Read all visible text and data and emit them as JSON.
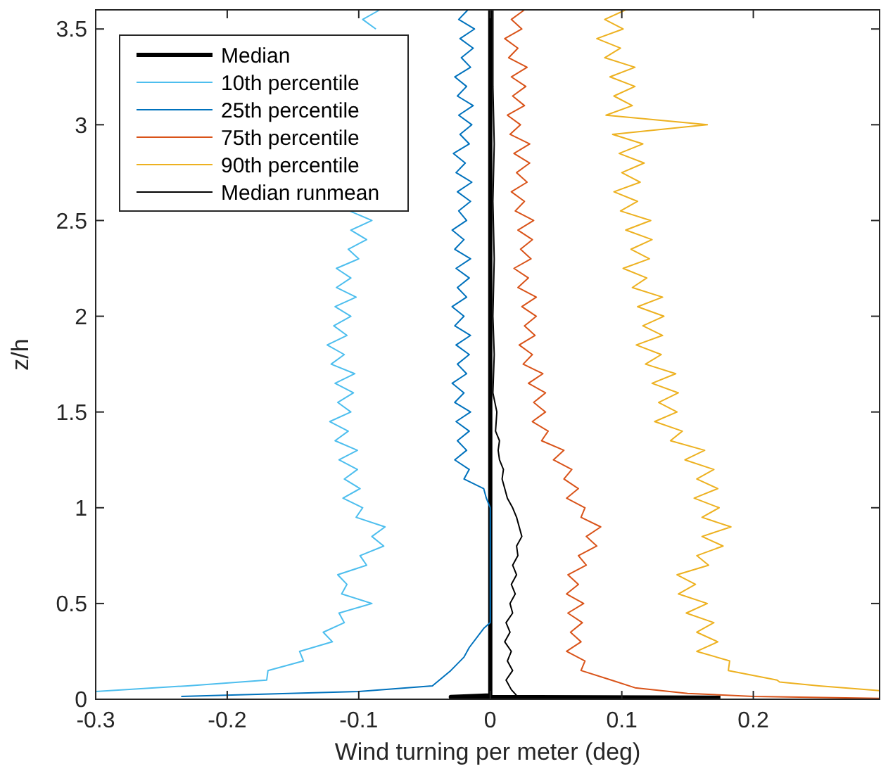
{
  "chart_data": {
    "type": "line",
    "xlabel": "Wind turning per meter (deg)",
    "ylabel": "z/h",
    "xlim": [
      -0.3,
      0.296
    ],
    "ylim": [
      0,
      3.6
    ],
    "xticks": [
      -0.3,
      -0.2,
      -0.1,
      0,
      0.1,
      0.2
    ],
    "yticks": [
      0,
      0.5,
      1,
      1.5,
      2,
      2.5,
      3,
      3.5
    ],
    "grid": false,
    "legend": "top left",
    "line_style": "solid",
    "marker": "none",
    "series": [
      {
        "name": "Median",
        "color": "#000000",
        "x": [
          0.175,
          -0.03,
          0,
          0
        ],
        "values": [
          0.008,
          0.012,
          0.02,
          3.6
        ]
      },
      {
        "name": "10th percentile",
        "color": "#4dbeee",
        "x": [
          -0.3,
          -0.23,
          -0.17,
          -0.169,
          -0.142,
          -0.145,
          -0.12,
          -0.127,
          -0.111,
          -0.115,
          -0.09,
          -0.113,
          -0.109,
          -0.116,
          -0.094,
          -0.099,
          -0.081,
          -0.09,
          -0.08,
          -0.102,
          -0.097,
          -0.112,
          -0.099,
          -0.111,
          -0.101,
          -0.115,
          -0.101,
          -0.118,
          -0.108,
          -0.122,
          -0.106,
          -0.116,
          -0.104,
          -0.118,
          -0.103,
          -0.121,
          -0.111,
          -0.124,
          -0.109,
          -0.119,
          -0.106,
          -0.118,
          -0.102,
          -0.117,
          -0.106,
          -0.117,
          -0.1,
          -0.108,
          -0.094,
          -0.106,
          -0.09,
          -0.107,
          null,
          null,
          null,
          null,
          null,
          null,
          null,
          null,
          null,
          null,
          null,
          null,
          null,
          null,
          null,
          null,
          null,
          null,
          -0.087,
          -0.097,
          -0.084
        ],
        "values": [
          0.04,
          0.07,
          0.1,
          0.15,
          0.2,
          0.25,
          0.3,
          0.35,
          0.4,
          0.45,
          0.5,
          0.55,
          0.6,
          0.65,
          0.7,
          0.75,
          0.8,
          0.85,
          0.9,
          0.95,
          1,
          1.05,
          1.1,
          1.15,
          1.2,
          1.25,
          1.3,
          1.35,
          1.4,
          1.45,
          1.5,
          1.55,
          1.6,
          1.65,
          1.7,
          1.75,
          1.8,
          1.85,
          1.9,
          1.95,
          2,
          2.05,
          2.1,
          2.15,
          2.2,
          2.25,
          2.3,
          2.35,
          2.4,
          2.45,
          2.5,
          2.55,
          null,
          null,
          null,
          null,
          null,
          null,
          null,
          null,
          null,
          null,
          null,
          null,
          null,
          null,
          null,
          null,
          null,
          null,
          3.5,
          3.55,
          3.6
        ]
      },
      {
        "name": "25th percentile",
        "color": "#0072bd",
        "x": [
          -0.235,
          -0.1,
          -0.044,
          -0.03,
          -0.02,
          -0.016,
          -0.005,
          0,
          0,
          -0.003,
          -0.005,
          -0.02,
          -0.016,
          -0.027,
          -0.018,
          -0.025,
          -0.016,
          -0.026,
          -0.015,
          -0.027,
          -0.02,
          -0.029,
          -0.018,
          -0.025,
          -0.016,
          -0.026,
          -0.015,
          -0.027,
          -0.02,
          -0.029,
          -0.018,
          -0.025,
          -0.016,
          -0.026,
          -0.015,
          -0.027,
          -0.02,
          -0.029,
          -0.018,
          -0.024,
          -0.015,
          -0.025,
          -0.014,
          -0.026,
          -0.019,
          -0.028,
          -0.016,
          -0.023,
          -0.014,
          -0.024,
          -0.013,
          -0.025,
          -0.018,
          -0.027,
          -0.015,
          -0.022,
          -0.013,
          -0.023,
          -0.012,
          -0.024,
          -0.017
        ],
        "values": [
          0.015,
          0.04,
          0.07,
          0.15,
          0.22,
          0.27,
          0.37,
          0.4,
          1,
          1.05,
          1.1,
          1.15,
          1.2,
          1.25,
          1.3,
          1.35,
          1.4,
          1.45,
          1.5,
          1.55,
          1.6,
          1.65,
          1.7,
          1.75,
          1.8,
          1.85,
          1.9,
          1.95,
          2,
          2.05,
          2.1,
          2.15,
          2.2,
          2.25,
          2.3,
          2.35,
          2.4,
          2.45,
          2.5,
          2.55,
          2.6,
          2.65,
          2.7,
          2.75,
          2.8,
          2.85,
          2.9,
          2.95,
          3,
          3.05,
          3.1,
          3.15,
          3.2,
          3.25,
          3.3,
          3.35,
          3.4,
          3.45,
          3.5,
          3.55,
          3.6
        ]
      },
      {
        "name": "75th percentile",
        "color": "#d95319",
        "x": [
          0.296,
          0.2,
          0.15,
          0.11,
          0.092,
          0.069,
          0.072,
          0.058,
          0.069,
          0.061,
          0.07,
          0.059,
          0.071,
          0.058,
          0.067,
          0.059,
          0.073,
          0.067,
          0.081,
          0.073,
          0.084,
          0.069,
          0.072,
          0.058,
          0.067,
          0.056,
          0.062,
          0.048,
          0.056,
          0.039,
          0.044,
          0.032,
          0.042,
          0.033,
          0.042,
          0.029,
          0.04,
          0.025,
          0.032,
          0.022,
          0.034,
          0.026,
          0.035,
          0.024,
          0.035,
          0.021,
          0.029,
          0.018,
          0.031,
          0.023,
          0.032,
          0.021,
          0.033,
          0.019,
          0.026,
          0.016,
          0.028,
          0.02,
          0.03,
          0.018,
          0.03,
          0.015,
          0.023,
          0.013,
          0.026,
          0.017,
          0.027,
          0.016,
          0.028,
          0.014,
          0.021,
          0.011,
          0.024,
          0.016,
          0.026
        ],
        "values": [
          0.005,
          0.015,
          0.03,
          0.06,
          0.1,
          0.15,
          0.2,
          0.25,
          0.3,
          0.35,
          0.4,
          0.45,
          0.5,
          0.55,
          0.6,
          0.65,
          0.7,
          0.75,
          0.8,
          0.85,
          0.9,
          0.95,
          1,
          1.05,
          1.1,
          1.15,
          1.2,
          1.25,
          1.3,
          1.35,
          1.4,
          1.45,
          1.5,
          1.55,
          1.6,
          1.65,
          1.7,
          1.75,
          1.8,
          1.85,
          1.9,
          1.95,
          2,
          2.05,
          2.1,
          2.15,
          2.2,
          2.25,
          2.3,
          2.35,
          2.4,
          2.45,
          2.5,
          2.55,
          2.6,
          2.65,
          2.7,
          2.75,
          2.8,
          2.85,
          2.9,
          2.95,
          3,
          3.05,
          3.1,
          3.15,
          3.2,
          3.25,
          3.3,
          3.35,
          3.4,
          3.45,
          3.5,
          3.55,
          3.6
        ]
      },
      {
        "name": "90th percentile",
        "color": "#edb120",
        "x": [
          0.296,
          0.25,
          0.22,
          0.218,
          0.181,
          0.182,
          0.157,
          0.173,
          0.157,
          0.17,
          0.149,
          0.165,
          0.143,
          0.156,
          0.142,
          0.166,
          0.157,
          0.177,
          0.161,
          0.183,
          0.161,
          0.174,
          0.155,
          0.173,
          0.157,
          0.17,
          0.148,
          0.163,
          0.137,
          0.146,
          0.125,
          0.142,
          0.128,
          0.143,
          0.123,
          0.141,
          0.118,
          0.13,
          0.111,
          0.131,
          0.116,
          0.132,
          0.112,
          0.131,
          0.108,
          0.119,
          0.101,
          0.121,
          0.107,
          0.123,
          0.103,
          0.122,
          0.099,
          0.112,
          0.094,
          0.114,
          0.1,
          0.117,
          0.098,
          0.116,
          0.093,
          0.165,
          0.088,
          0.108,
          0.094,
          0.11,
          0.091,
          0.11,
          0.087,
          0.099,
          0.081,
          0.101,
          0.087,
          0.103
        ],
        "values": [
          0.045,
          0.07,
          0.09,
          0.1,
          0.15,
          0.2,
          0.25,
          0.3,
          0.35,
          0.4,
          0.45,
          0.5,
          0.55,
          0.6,
          0.65,
          0.7,
          0.75,
          0.8,
          0.85,
          0.9,
          0.95,
          1,
          1.05,
          1.1,
          1.15,
          1.2,
          1.25,
          1.3,
          1.35,
          1.4,
          1.45,
          1.5,
          1.55,
          1.6,
          1.65,
          1.7,
          1.75,
          1.8,
          1.85,
          1.9,
          1.95,
          2,
          2.05,
          2.1,
          2.15,
          2.2,
          2.25,
          2.3,
          2.35,
          2.4,
          2.45,
          2.5,
          2.55,
          2.6,
          2.65,
          2.7,
          2.75,
          2.8,
          2.85,
          2.9,
          2.95,
          3,
          3.05,
          3.1,
          3.15,
          3.2,
          3.25,
          3.3,
          3.35,
          3.4,
          3.45,
          3.5,
          3.55,
          3.6
        ]
      },
      {
        "name": "Median runmean",
        "color": "#000000",
        "x": [
          0.02,
          0.016,
          0.012,
          0.017,
          0.013,
          0.016,
          0.011,
          0.015,
          0.012,
          0.017,
          0.015,
          0.019,
          0.016,
          0.02,
          0.017,
          0.021,
          0.02,
          0.024,
          0.022,
          0.02,
          0.017,
          0.013,
          0.011,
          0.009,
          0.01,
          0.007,
          0.006,
          0.007,
          0.004,
          0.005,
          0.002,
          0.003,
          0.002,
          0.003,
          0.002,
          0.003,
          0.002,
          0.002
        ],
        "values": [
          0.02,
          0.05,
          0.1,
          0.15,
          0.2,
          0.25,
          0.3,
          0.35,
          0.4,
          0.45,
          0.5,
          0.55,
          0.6,
          0.65,
          0.7,
          0.75,
          0.8,
          0.85,
          0.9,
          0.95,
          1,
          1.05,
          1.1,
          1.15,
          1.2,
          1.25,
          1.3,
          1.35,
          1.4,
          1.5,
          1.6,
          1.8,
          2,
          2.3,
          2.6,
          2.9,
          3.2,
          3.6
        ]
      }
    ]
  }
}
